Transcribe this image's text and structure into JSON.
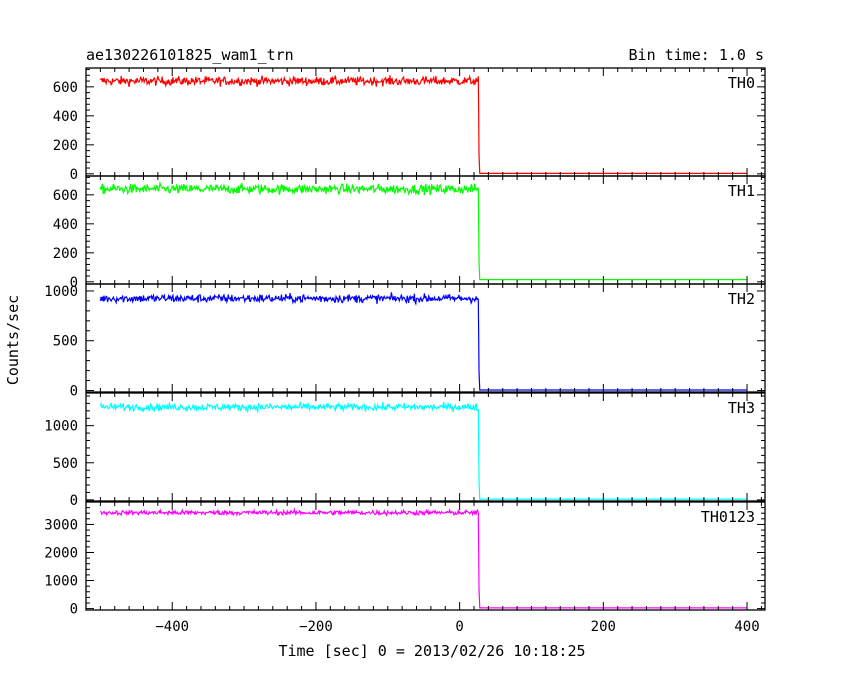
{
  "chart_data": {
    "type": "line",
    "title": "ae130226101825_wam1_trn",
    "subtitle": "Bin time: 1.0 s",
    "xlabel": "Time [sec] 0 = 2013/02/26 10:18:25",
    "ylabel": "Counts/sec",
    "xlim": [
      -520,
      425
    ],
    "x_ticks": [
      -400,
      -200,
      0,
      200,
      400
    ],
    "x_tick_labels": [
      "−400",
      "−200",
      "0",
      "200",
      "400"
    ],
    "transition_time": 27,
    "data_start": -500,
    "data_end": 400,
    "grid": false,
    "panels": [
      {
        "name": "TH0",
        "color": "#ff0000",
        "ylim": [
          -15,
          730
        ],
        "mean": 640,
        "noise": 22,
        "after": 3,
        "y_ticks": [
          0,
          200,
          400,
          600
        ],
        "y_tick_labels": [
          "0",
          "200",
          "400",
          "600"
        ]
      },
      {
        "name": "TH1",
        "color": "#00ff00",
        "ylim": [
          -15,
          730
        ],
        "mean": 640,
        "noise": 24,
        "after": 15,
        "y_ticks": [
          0,
          200,
          400,
          600
        ],
        "y_tick_labels": [
          "0",
          "200",
          "400",
          "600"
        ]
      },
      {
        "name": "TH2",
        "color": "#0000ff",
        "ylim": [
          -15,
          1070
        ],
        "mean": 925,
        "noise": 30,
        "after": 5,
        "y_ticks": [
          0,
          500,
          1000
        ],
        "y_tick_labels": [
          "0",
          "500",
          "1000"
        ]
      },
      {
        "name": "TH3",
        "color": "#00ffff",
        "ylim": [
          -15,
          1440
        ],
        "mean": 1250,
        "noise": 35,
        "after": 10,
        "y_ticks": [
          0,
          500,
          1000
        ],
        "y_tick_labels": [
          "0",
          "500",
          "1000"
        ]
      },
      {
        "name": "TH0123",
        "color": "#ff00ff",
        "ylim": [
          -50,
          3800
        ],
        "mean": 3420,
        "noise": 60,
        "after": 25,
        "y_ticks": [
          0,
          1000,
          2000,
          3000
        ],
        "y_tick_labels": [
          "0",
          "1000",
          "2000",
          "3000"
        ]
      }
    ]
  }
}
